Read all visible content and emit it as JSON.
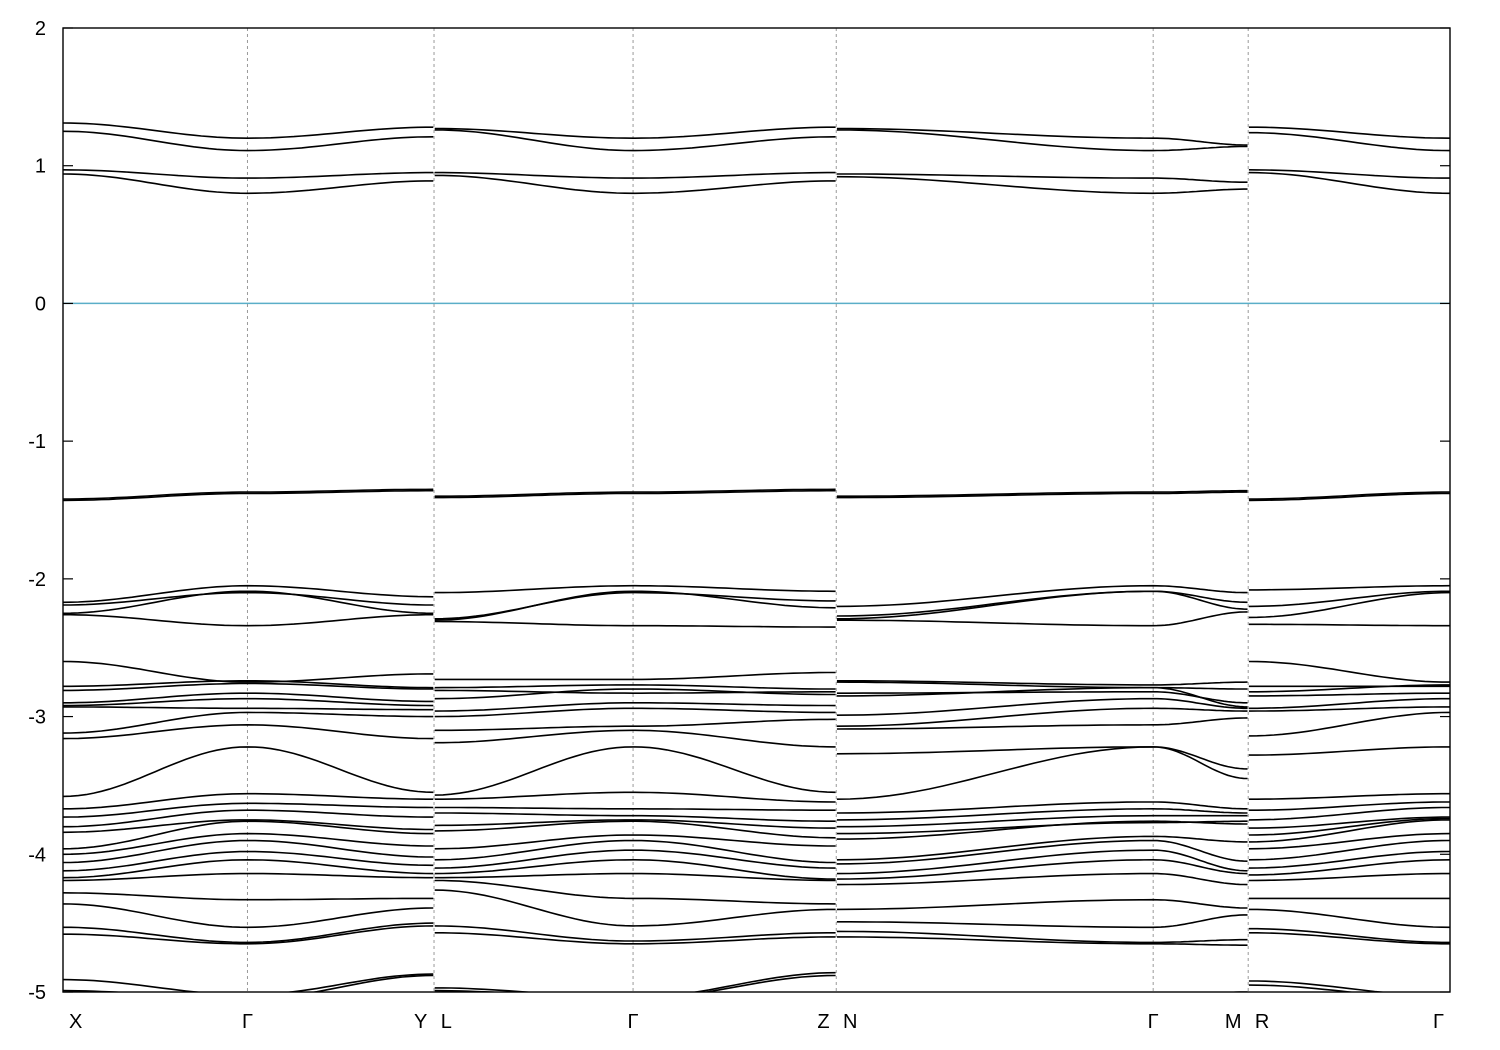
{
  "chart_data": {
    "type": "line",
    "title": "",
    "xlabel": "",
    "ylabel": "",
    "ylim": [
      -5,
      2
    ],
    "y_ticks": [
      -5,
      -4,
      -3,
      -2,
      -1,
      0,
      1,
      2
    ],
    "y_tick_labels": [
      "-5",
      "-4",
      "-3",
      "-2",
      "-1",
      "0",
      "1",
      "2"
    ],
    "xlim": [
      0,
      10
    ],
    "k_points": [
      {
        "x": 0.0,
        "label": "X"
      },
      {
        "x": 1.33,
        "label": "Γ"
      },
      {
        "x": 2.67,
        "label": "Y"
      },
      {
        "x": 2.68,
        "label": "L"
      },
      {
        "x": 4.11,
        "label": "Γ"
      },
      {
        "x": 5.57,
        "label": "Z"
      },
      {
        "x": 5.58,
        "label": "N"
      },
      {
        "x": 7.86,
        "label": "Γ"
      },
      {
        "x": 8.54,
        "label": "M"
      },
      {
        "x": 8.55,
        "label": "R"
      },
      {
        "x": 10.0,
        "label": "Γ"
      }
    ],
    "vertical_lines_at": [
      1.33,
      2.675,
      4.11,
      5.575,
      7.86,
      8.545
    ],
    "fermi_level": {
      "y": 0,
      "color": "#5aaec8"
    },
    "band_color": "#000000",
    "segments": [
      {
        "name_path": "X-Γ-Y",
        "x": [
          0.0,
          1.33,
          2.67
        ],
        "bands": [
          [
            1.31,
            1.2,
            1.28
          ],
          [
            1.25,
            1.11,
            1.21
          ],
          [
            0.97,
            0.91,
            0.95
          ],
          [
            0.94,
            0.8,
            0.89
          ],
          [
            -1.43,
            -1.38,
            -1.36
          ],
          [
            -1.42,
            -1.37,
            -1.35
          ],
          [
            -2.17,
            -2.05,
            -2.13
          ],
          [
            -2.19,
            -2.1,
            -2.19
          ],
          [
            -2.25,
            -2.09,
            -2.25
          ],
          [
            -2.26,
            -2.34,
            -2.26
          ],
          [
            -2.6,
            -2.75,
            -2.69
          ],
          [
            -2.78,
            -2.74,
            -2.79
          ],
          [
            -2.81,
            -2.76,
            -2.8
          ],
          [
            -2.9,
            -2.83,
            -2.89
          ],
          [
            -2.92,
            -2.87,
            -2.92
          ],
          [
            -2.93,
            -2.94,
            -2.95
          ],
          [
            -3.12,
            -2.97,
            -3.0
          ],
          [
            -3.16,
            -3.06,
            -3.16
          ],
          [
            -3.58,
            -3.22,
            -3.55
          ],
          [
            -3.67,
            -3.56,
            -3.6
          ],
          [
            -3.73,
            -3.63,
            -3.66
          ],
          [
            -3.8,
            -3.68,
            -3.73
          ],
          [
            -3.84,
            -3.75,
            -3.82
          ],
          [
            -3.96,
            -3.76,
            -3.85
          ],
          [
            -4.0,
            -3.85,
            -3.94
          ],
          [
            -4.06,
            -3.9,
            -4.02
          ],
          [
            -4.12,
            -3.98,
            -4.08
          ],
          [
            -4.17,
            -4.04,
            -4.14
          ],
          [
            -4.19,
            -4.14,
            -4.17
          ],
          [
            -4.28,
            -4.33,
            -4.32
          ],
          [
            -4.36,
            -4.53,
            -4.39
          ],
          [
            -4.53,
            -4.64,
            -4.5
          ],
          [
            -4.58,
            -4.65,
            -4.52
          ],
          [
            -4.91,
            -5.02,
            -4.87
          ],
          [
            -4.99,
            -5.05,
            -4.88
          ]
        ]
      },
      {
        "name_path": "L-Γ-Z",
        "x": [
          2.68,
          4.11,
          5.57
        ],
        "bands": [
          [
            1.27,
            1.2,
            1.28
          ],
          [
            1.26,
            1.11,
            1.21
          ],
          [
            0.95,
            0.91,
            0.95
          ],
          [
            0.93,
            0.8,
            0.89
          ],
          [
            -1.41,
            -1.38,
            -1.36
          ],
          [
            -1.4,
            -1.37,
            -1.35
          ],
          [
            -2.1,
            -2.05,
            -2.09
          ],
          [
            -2.29,
            -2.1,
            -2.16
          ],
          [
            -2.3,
            -2.09,
            -2.21
          ],
          [
            -2.31,
            -2.34,
            -2.35
          ],
          [
            -2.73,
            -2.73,
            -2.68
          ],
          [
            -2.79,
            -2.77,
            -2.8
          ],
          [
            -2.81,
            -2.83,
            -2.82
          ],
          [
            -2.87,
            -2.8,
            -2.84
          ],
          [
            -2.96,
            -2.9,
            -2.92
          ],
          [
            -3.0,
            -2.94,
            -2.97
          ],
          [
            -3.1,
            -3.07,
            -3.02
          ],
          [
            -3.19,
            -3.1,
            -3.22
          ],
          [
            -3.57,
            -3.22,
            -3.55
          ],
          [
            -3.6,
            -3.55,
            -3.62
          ],
          [
            -3.66,
            -3.67,
            -3.68
          ],
          [
            -3.7,
            -3.72,
            -3.76
          ],
          [
            -3.79,
            -3.75,
            -3.81
          ],
          [
            -3.83,
            -3.76,
            -3.88
          ],
          [
            -3.96,
            -3.86,
            -3.94
          ],
          [
            -4.04,
            -3.9,
            -4.06
          ],
          [
            -4.1,
            -3.97,
            -4.1
          ],
          [
            -4.14,
            -4.04,
            -4.18
          ],
          [
            -4.17,
            -4.14,
            -4.19
          ],
          [
            -4.19,
            -4.32,
            -4.36
          ],
          [
            -4.26,
            -4.52,
            -4.4
          ],
          [
            -4.52,
            -4.63,
            -4.57
          ],
          [
            -4.57,
            -4.65,
            -4.6
          ],
          [
            -4.97,
            -5.04,
            -4.86
          ],
          [
            -4.99,
            -5.05,
            -4.88
          ]
        ]
      },
      {
        "name_path": "N-Γ-M",
        "x": [
          5.58,
          7.86,
          8.54
        ],
        "bands": [
          [
            1.27,
            1.2,
            1.15
          ],
          [
            1.26,
            1.11,
            1.14
          ],
          [
            0.94,
            0.91,
            0.88
          ],
          [
            0.92,
            0.8,
            0.83
          ],
          [
            -1.41,
            -1.38,
            -1.37
          ],
          [
            -1.4,
            -1.37,
            -1.36
          ],
          [
            -2.2,
            -2.05,
            -2.1
          ],
          [
            -2.27,
            -2.09,
            -2.17
          ],
          [
            -2.29,
            -2.09,
            -2.22
          ],
          [
            -2.3,
            -2.34,
            -2.24
          ],
          [
            -2.74,
            -2.77,
            -2.75
          ],
          [
            -2.75,
            -2.79,
            -2.8
          ],
          [
            -2.83,
            -2.82,
            -2.9
          ],
          [
            -2.85,
            -2.79,
            -2.93
          ],
          [
            -2.99,
            -2.87,
            -2.94
          ],
          [
            -3.07,
            -2.94,
            -2.96
          ],
          [
            -3.09,
            -3.06,
            -3.01
          ],
          [
            -3.27,
            -3.22,
            -3.45
          ],
          [
            -3.6,
            -3.22,
            -3.38
          ],
          [
            -3.7,
            -3.62,
            -3.67
          ],
          [
            -3.75,
            -3.67,
            -3.7
          ],
          [
            -3.8,
            -3.72,
            -3.72
          ],
          [
            -3.85,
            -3.77,
            -3.76
          ],
          [
            -3.89,
            -3.76,
            -3.78
          ],
          [
            -4.04,
            -3.87,
            -3.91
          ],
          [
            -4.07,
            -3.9,
            -4.05
          ],
          [
            -4.14,
            -3.97,
            -4.12
          ],
          [
            -4.18,
            -4.04,
            -4.14
          ],
          [
            -4.22,
            -4.14,
            -4.22
          ],
          [
            -4.4,
            -4.33,
            -4.39
          ],
          [
            -4.49,
            -4.53,
            -4.44
          ],
          [
            -4.56,
            -4.64,
            -4.62
          ],
          [
            -4.6,
            -4.65,
            -4.66
          ],
          [
            -5.02,
            -5.04,
            -5.0
          ],
          [
            -5.05,
            -5.06,
            -5.04
          ]
        ]
      },
      {
        "name_path": "R-Γ",
        "x": [
          8.55,
          10.0
        ],
        "bands": [
          [
            1.28,
            1.2
          ],
          [
            1.24,
            1.11
          ],
          [
            0.97,
            0.91
          ],
          [
            0.95,
            0.8
          ],
          [
            -1.43,
            -1.38
          ],
          [
            -1.42,
            -1.37
          ],
          [
            -2.08,
            -2.05
          ],
          [
            -2.2,
            -2.09
          ],
          [
            -2.28,
            -2.1
          ],
          [
            -2.33,
            -2.34
          ],
          [
            -2.6,
            -2.75
          ],
          [
            -2.78,
            -2.78
          ],
          [
            -2.82,
            -2.77
          ],
          [
            -2.85,
            -2.83
          ],
          [
            -2.94,
            -2.87
          ],
          [
            -2.96,
            -2.93
          ],
          [
            -3.14,
            -2.97
          ],
          [
            -3.28,
            -3.22
          ],
          [
            -3.6,
            -3.56
          ],
          [
            -3.68,
            -3.62
          ],
          [
            -3.75,
            -3.66
          ],
          [
            -3.81,
            -3.73
          ],
          [
            -3.86,
            -3.74
          ],
          [
            -3.91,
            -3.75
          ],
          [
            -3.96,
            -3.85
          ],
          [
            -4.04,
            -3.9
          ],
          [
            -4.1,
            -3.98
          ],
          [
            -4.15,
            -4.04
          ],
          [
            -4.19,
            -4.14
          ],
          [
            -4.32,
            -4.32
          ],
          [
            -4.4,
            -4.53
          ],
          [
            -4.54,
            -4.64
          ],
          [
            -4.57,
            -4.65
          ],
          [
            -4.92,
            -5.03
          ],
          [
            -4.95,
            -5.05
          ]
        ]
      }
    ]
  }
}
